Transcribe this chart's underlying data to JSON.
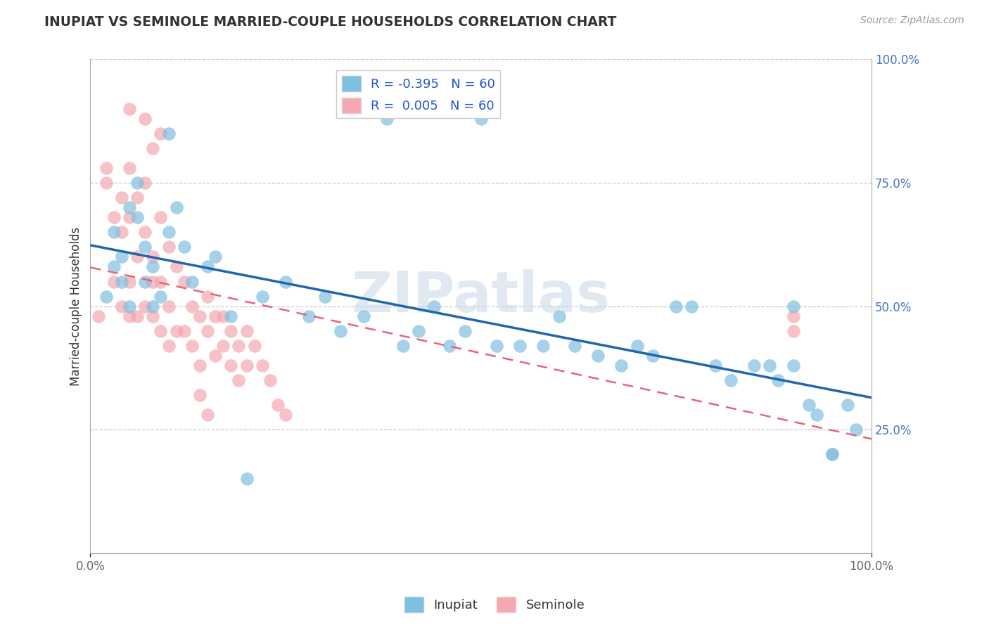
{
  "title": "INUPIAT VS SEMINOLE MARRIED-COUPLE HOUSEHOLDS CORRELATION CHART",
  "source": "Source: ZipAtlas.com",
  "ylabel": "Married-couple Households",
  "xlim": [
    0.0,
    1.0
  ],
  "ylim": [
    0.0,
    1.0
  ],
  "ytick_positions": [
    0.25,
    0.5,
    0.75,
    1.0
  ],
  "ytick_labels": [
    "25.0%",
    "50.0%",
    "75.0%",
    "100.0%"
  ],
  "xtick_labels": [
    "0.0%",
    "100.0%"
  ],
  "inupiat_color": "#7fbfdf",
  "seminole_color": "#f4a8b0",
  "inupiat_line_color": "#2166ac",
  "seminole_line_color": "#e8637a",
  "R_inupiat": -0.395,
  "R_seminole": 0.005,
  "N": 60,
  "watermark": "ZIPatlas",
  "background_color": "#ffffff",
  "grid_color": "#c8c8c8",
  "inupiat_x": [
    0.02,
    0.03,
    0.03,
    0.04,
    0.04,
    0.05,
    0.05,
    0.06,
    0.06,
    0.07,
    0.07,
    0.08,
    0.08,
    0.09,
    0.1,
    0.1,
    0.11,
    0.12,
    0.13,
    0.15,
    0.16,
    0.18,
    0.2,
    0.22,
    0.25,
    0.28,
    0.3,
    0.32,
    0.35,
    0.38,
    0.4,
    0.42,
    0.44,
    0.46,
    0.48,
    0.5,
    0.52,
    0.55,
    0.58,
    0.6,
    0.62,
    0.65,
    0.68,
    0.7,
    0.72,
    0.75,
    0.77,
    0.8,
    0.82,
    0.85,
    0.87,
    0.88,
    0.9,
    0.9,
    0.92,
    0.93,
    0.95,
    0.95,
    0.97,
    0.98
  ],
  "inupiat_y": [
    0.52,
    0.58,
    0.65,
    0.55,
    0.6,
    0.7,
    0.5,
    0.68,
    0.75,
    0.62,
    0.55,
    0.58,
    0.5,
    0.52,
    0.85,
    0.65,
    0.7,
    0.62,
    0.55,
    0.58,
    0.6,
    0.48,
    0.15,
    0.52,
    0.55,
    0.48,
    0.52,
    0.45,
    0.48,
    0.88,
    0.42,
    0.45,
    0.5,
    0.42,
    0.45,
    0.88,
    0.42,
    0.42,
    0.42,
    0.48,
    0.42,
    0.4,
    0.38,
    0.42,
    0.4,
    0.5,
    0.5,
    0.38,
    0.35,
    0.38,
    0.38,
    0.35,
    0.38,
    0.5,
    0.3,
    0.28,
    0.2,
    0.2,
    0.3,
    0.25
  ],
  "seminole_x": [
    0.01,
    0.02,
    0.02,
    0.03,
    0.03,
    0.04,
    0.04,
    0.04,
    0.05,
    0.05,
    0.05,
    0.05,
    0.06,
    0.06,
    0.06,
    0.07,
    0.07,
    0.07,
    0.08,
    0.08,
    0.08,
    0.09,
    0.09,
    0.09,
    0.1,
    0.1,
    0.1,
    0.11,
    0.11,
    0.12,
    0.12,
    0.13,
    0.13,
    0.14,
    0.14,
    0.15,
    0.15,
    0.16,
    0.16,
    0.17,
    0.17,
    0.18,
    0.18,
    0.19,
    0.19,
    0.2,
    0.2,
    0.21,
    0.22,
    0.23,
    0.24,
    0.25,
    0.05,
    0.07,
    0.08,
    0.09,
    0.14,
    0.15,
    0.9,
    0.9
  ],
  "seminole_y": [
    0.48,
    0.78,
    0.75,
    0.68,
    0.55,
    0.72,
    0.65,
    0.5,
    0.78,
    0.68,
    0.55,
    0.48,
    0.72,
    0.6,
    0.48,
    0.75,
    0.65,
    0.5,
    0.6,
    0.55,
    0.48,
    0.68,
    0.55,
    0.45,
    0.62,
    0.5,
    0.42,
    0.58,
    0.45,
    0.55,
    0.45,
    0.5,
    0.42,
    0.48,
    0.38,
    0.52,
    0.45,
    0.48,
    0.4,
    0.48,
    0.42,
    0.45,
    0.38,
    0.42,
    0.35,
    0.45,
    0.38,
    0.42,
    0.38,
    0.35,
    0.3,
    0.28,
    0.9,
    0.88,
    0.82,
    0.85,
    0.32,
    0.28,
    0.48,
    0.45
  ]
}
